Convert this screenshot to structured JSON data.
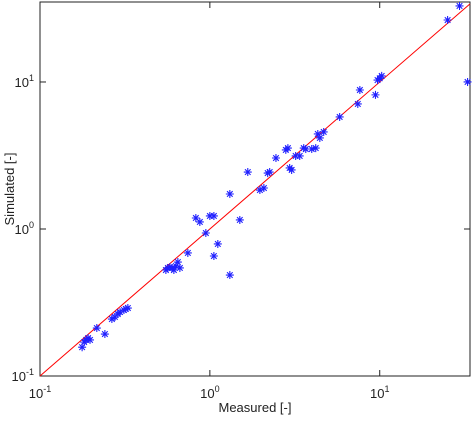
{
  "chart_data": {
    "type": "scatter",
    "x_label": "Measured [-]",
    "y_label": "Simulated [-]",
    "x_scale": "log",
    "y_scale": "log",
    "xlim": [
      0.1,
      34
    ],
    "ylim": [
      0.1,
      35
    ],
    "xticks": [
      {
        "value": 0.1,
        "label": "10",
        "exponent": "-1"
      },
      {
        "value": 1,
        "label": "10",
        "exponent": "0"
      },
      {
        "value": 10,
        "label": "10",
        "exponent": "1"
      }
    ],
    "yticks": [
      {
        "value": 0.1,
        "label": "10",
        "exponent": "-1"
      },
      {
        "value": 1,
        "label": "10",
        "exponent": "0"
      },
      {
        "value": 10,
        "label": "10",
        "exponent": "1"
      }
    ],
    "reference_line": {
      "color": "#ff0000"
    },
    "series": [
      {
        "color": "#1f1fff",
        "x": [
          0.177,
          0.182,
          0.187,
          0.192,
          0.197,
          0.216,
          0.241,
          0.265,
          0.276,
          0.287,
          0.296,
          0.312,
          0.32,
          0.329,
          0.551,
          0.566,
          0.582,
          0.598,
          0.614,
          0.631,
          0.648,
          0.666,
          0.742,
          0.827,
          0.873,
          0.947,
          1.0,
          1.056,
          1.056,
          1.114,
          1.311,
          1.311,
          1.501,
          1.672,
          1.97,
          2.08,
          2.19,
          2.25,
          2.45,
          2.8,
          2.88,
          2.95,
          3.03,
          3.2,
          3.38,
          3.57,
          3.67,
          3.98,
          4.2,
          4.32,
          4.44,
          4.68,
          5.81,
          7.43,
          7.64,
          9.44,
          9.71,
          10.0,
          10.27,
          25.1,
          29.5,
          32.9
        ],
        "values": [
          0.157,
          0.17,
          0.176,
          0.181,
          0.176,
          0.212,
          0.193,
          0.244,
          0.252,
          0.264,
          0.272,
          0.281,
          0.286,
          0.29,
          0.526,
          0.543,
          0.551,
          0.543,
          0.526,
          0.56,
          0.596,
          0.543,
          0.687,
          1.188,
          1.116,
          0.939,
          1.226,
          1.226,
          0.655,
          0.791,
          0.486,
          1.73,
          1.152,
          2.44,
          1.84,
          1.9,
          2.4,
          2.44,
          3.04,
          3.45,
          3.55,
          2.6,
          2.52,
          3.14,
          3.14,
          3.55,
          3.5,
          3.5,
          3.55,
          4.43,
          4.16,
          4.57,
          5.78,
          7.09,
          8.82,
          8.17,
          10.3,
          10.6,
          11.0,
          26.4,
          32.9,
          10.0
        ]
      }
    ]
  }
}
